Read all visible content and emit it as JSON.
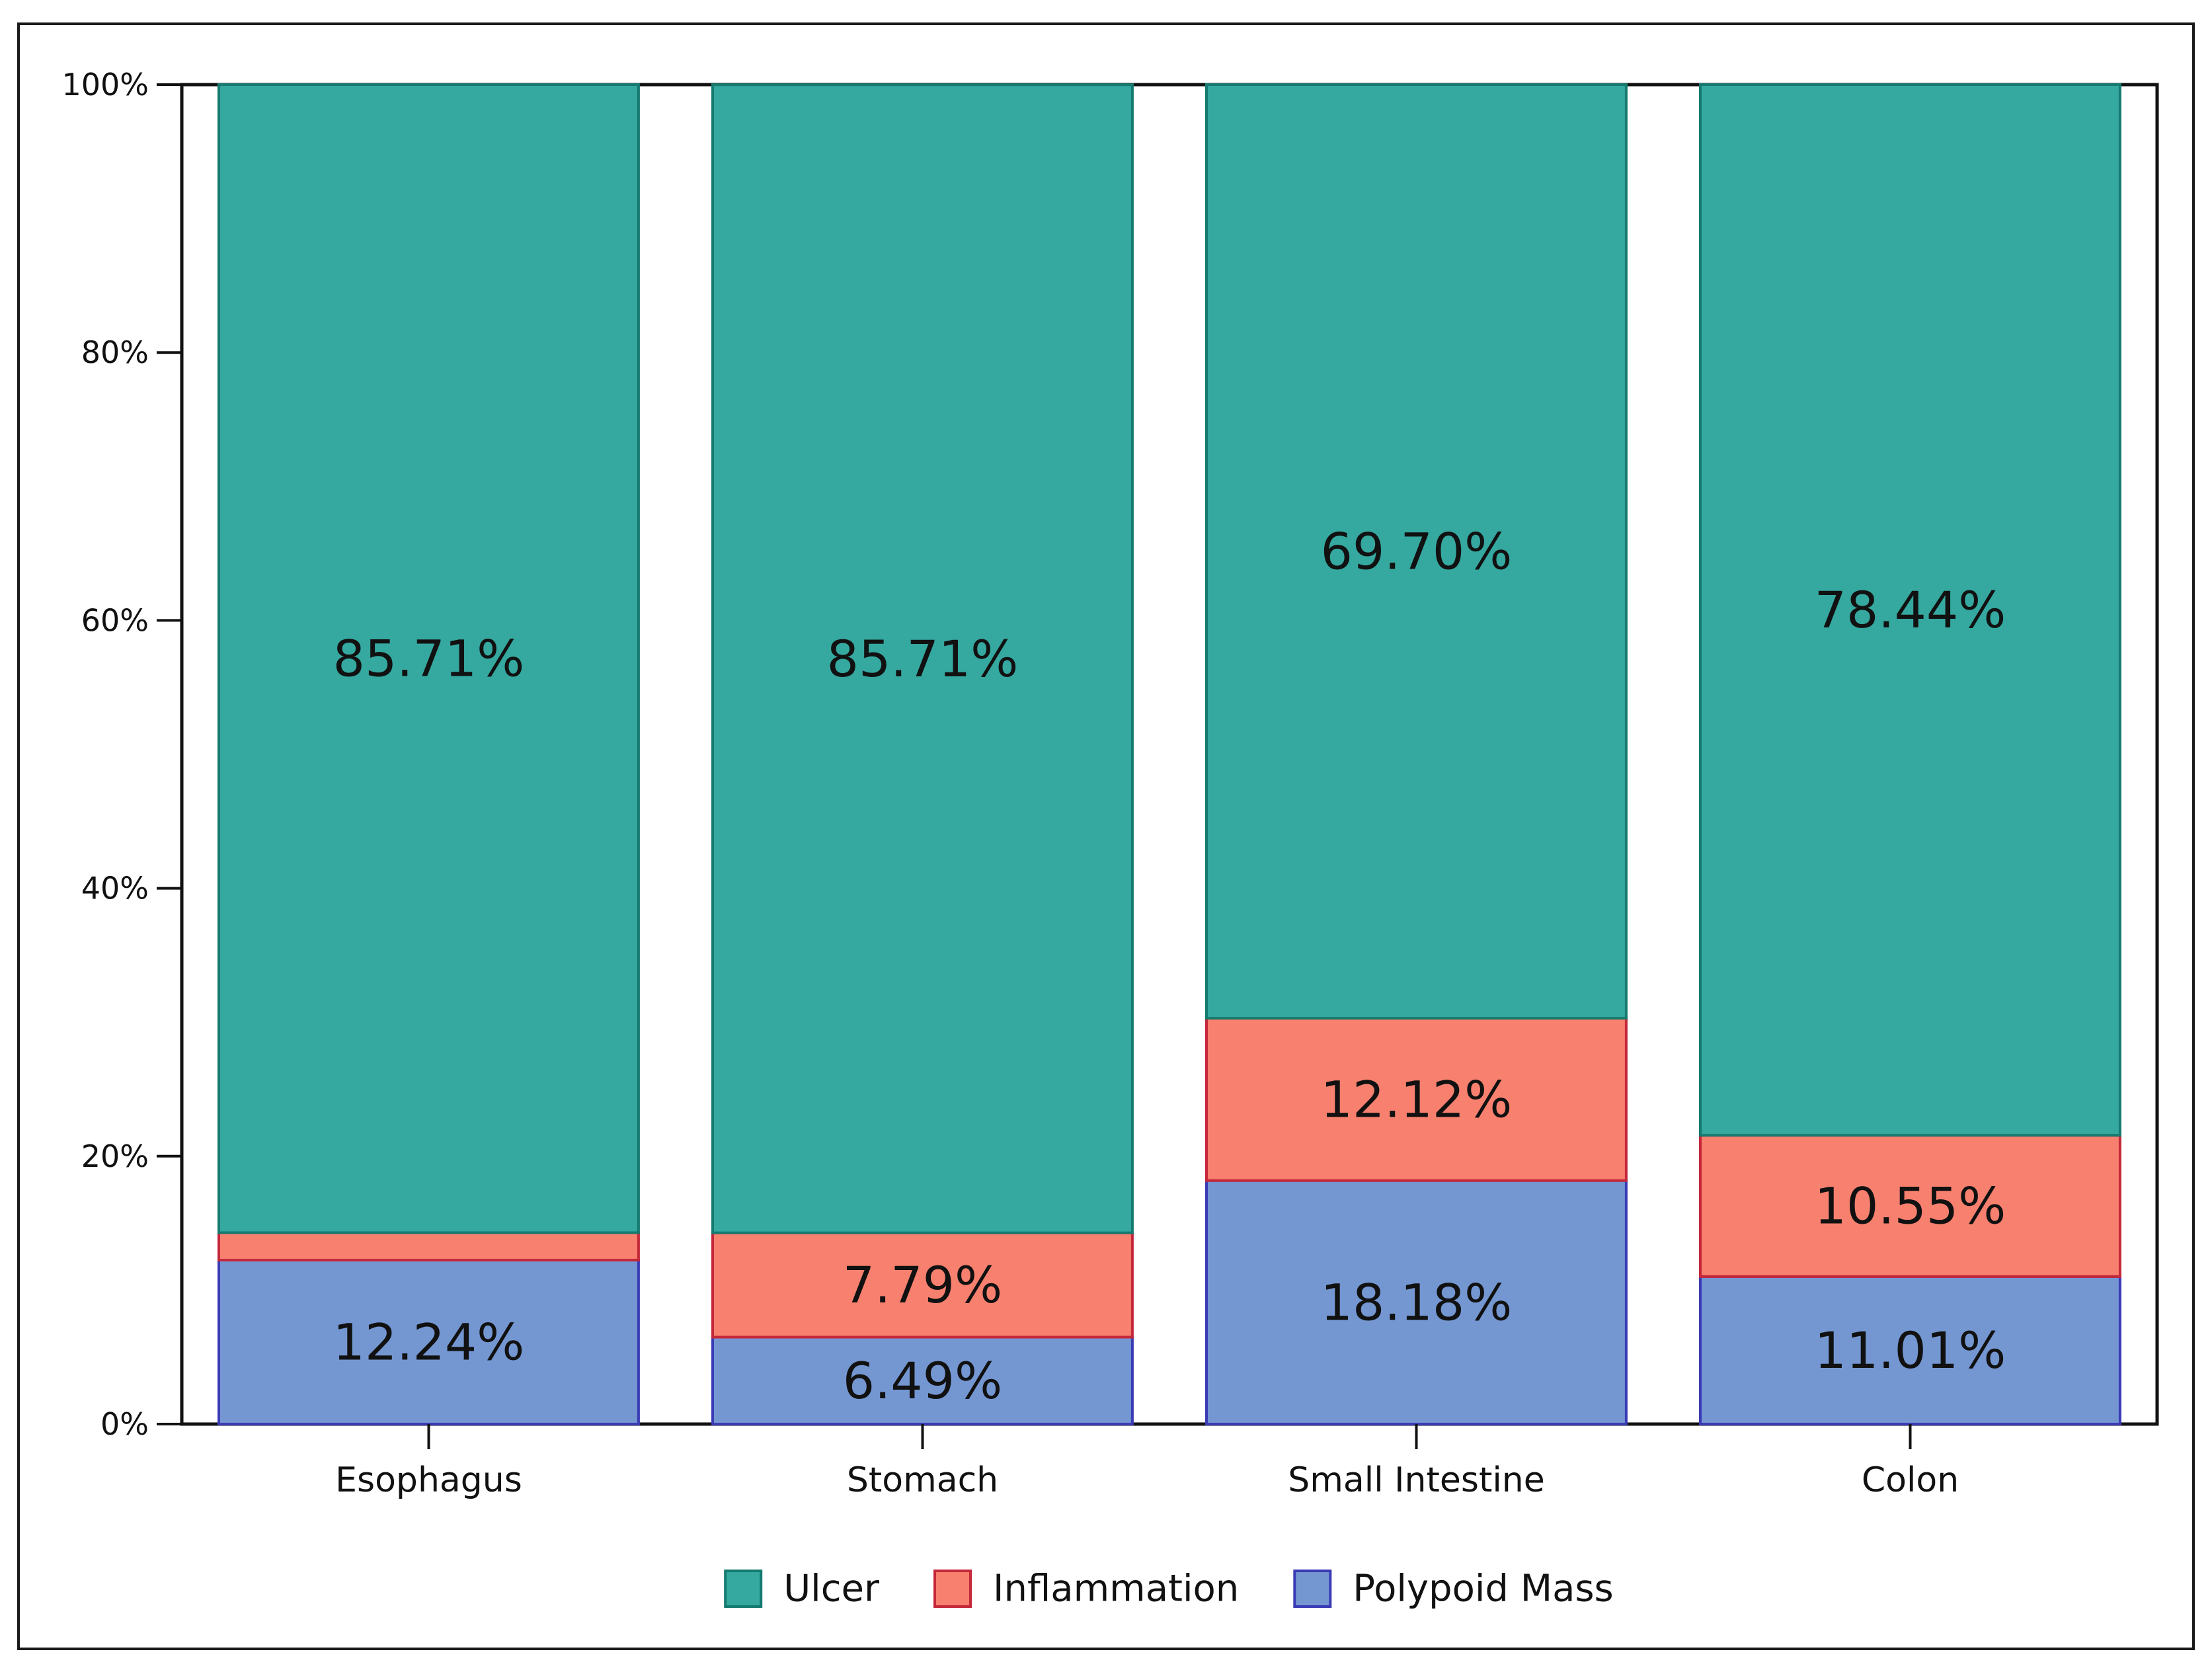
{
  "chart_data": {
    "type": "bar",
    "stacked": true,
    "title": "",
    "xlabel": "",
    "ylabel": "",
    "ylim": [
      0,
      100
    ],
    "yticks": [
      "0%",
      "20%",
      "40%",
      "60%",
      "80%",
      "100%"
    ],
    "categories": [
      "Esophagus",
      "Stomach",
      "Small Intestine",
      "Colon"
    ],
    "series": [
      {
        "name": "Polypoid Mass",
        "color": "#7497d2",
        "edge": "#3b3bb5",
        "values": [
          12.24,
          6.49,
          18.18,
          11.01
        ],
        "labels": [
          "12.24%",
          "6.49%",
          "18.18%",
          "11.01%"
        ]
      },
      {
        "name": "Inflammation",
        "color": "#f7806f",
        "edge": "#c4283a",
        "values": [
          2.05,
          7.79,
          12.12,
          10.55
        ],
        "labels": [
          "",
          "7.79%",
          "12.12%",
          "10.55%"
        ]
      },
      {
        "name": "Ulcer",
        "color": "#35a8a0",
        "edge": "#157a70",
        "values": [
          85.71,
          85.71,
          69.7,
          78.44
        ],
        "labels": [
          "85.71%",
          "85.71%",
          "69.70%",
          "78.44%"
        ]
      }
    ],
    "legend": {
      "position": "bottom",
      "order": [
        "Ulcer",
        "Inflammation",
        "Polypoid Mass"
      ]
    },
    "grid": false
  }
}
